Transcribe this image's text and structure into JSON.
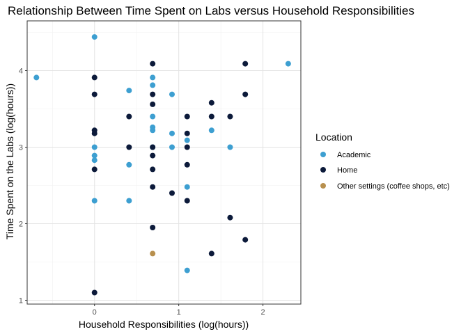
{
  "chart_data": {
    "type": "scatter",
    "title": "Relationship Between Time Spent on Labs versus Household Responsibilities",
    "xlabel": "Household Responsibilities (log(hours))",
    "ylabel": "Time Spent on the Labs (log(hours))",
    "xlim": [
      -0.8,
      2.45
    ],
    "ylim": [
      0.95,
      4.65
    ],
    "x_ticks": [
      0,
      1,
      2
    ],
    "y_ticks": [
      1,
      2,
      3,
      4
    ],
    "x_tick_labels": [
      "0",
      "1",
      "2"
    ],
    "y_tick_labels": [
      "1",
      "2",
      "3",
      "4"
    ],
    "grid": true,
    "legend": {
      "title": "Location",
      "position": "right",
      "entries": [
        {
          "label": "Academic",
          "color": "#3d9fd1"
        },
        {
          "label": "Home",
          "color": "#0c1a3a"
        },
        {
          "label": "Other settings (coffee shops, etc)",
          "color": "#b8904e"
        }
      ]
    },
    "series": [
      {
        "name": "Academic",
        "color": "#3d9fd1",
        "points": [
          [
            -0.69,
            3.91
          ],
          [
            0,
            4.44
          ],
          [
            0,
            3.0
          ],
          [
            0,
            2.89
          ],
          [
            0,
            2.83
          ],
          [
            0,
            2.3
          ],
          [
            0.41,
            3.74
          ],
          [
            0.41,
            2.77
          ],
          [
            0.41,
            2.3
          ],
          [
            0.69,
            3.91
          ],
          [
            0.69,
            3.81
          ],
          [
            0.69,
            3.4
          ],
          [
            0.69,
            3.26
          ],
          [
            0.69,
            3.22
          ],
          [
            0.69,
            3.0
          ],
          [
            0.92,
            3.69
          ],
          [
            0.92,
            3.18
          ],
          [
            0.92,
            3.0
          ],
          [
            1.1,
            3.09
          ],
          [
            1.1,
            2.48
          ],
          [
            1.1,
            1.39
          ],
          [
            1.39,
            3.22
          ],
          [
            1.61,
            3.0
          ],
          [
            2.3,
            4.09
          ]
        ]
      },
      {
        "name": "Home",
        "color": "#0c1a3a",
        "points": [
          [
            0,
            3.91
          ],
          [
            0,
            3.69
          ],
          [
            0,
            3.22
          ],
          [
            0,
            3.18
          ],
          [
            0,
            2.71
          ],
          [
            0,
            1.1
          ],
          [
            0.41,
            3.4
          ],
          [
            0.41,
            3.0
          ],
          [
            0.69,
            4.09
          ],
          [
            0.69,
            3.69
          ],
          [
            0.69,
            3.56
          ],
          [
            0.69,
            3.0
          ],
          [
            0.69,
            2.89
          ],
          [
            0.69,
            2.71
          ],
          [
            0.69,
            2.48
          ],
          [
            0.69,
            1.95
          ],
          [
            0.92,
            2.4
          ],
          [
            1.1,
            3.4
          ],
          [
            1.1,
            3.18
          ],
          [
            1.1,
            3.0
          ],
          [
            1.1,
            2.77
          ],
          [
            1.1,
            2.3
          ],
          [
            1.39,
            3.58
          ],
          [
            1.39,
            3.4
          ],
          [
            1.39,
            1.61
          ],
          [
            1.61,
            3.4
          ],
          [
            1.61,
            2.08
          ],
          [
            1.79,
            4.09
          ],
          [
            1.79,
            3.69
          ],
          [
            1.79,
            1.79
          ]
        ]
      },
      {
        "name": "Other settings (coffee shops, etc)",
        "color": "#b8904e",
        "points": [
          [
            0.69,
            1.61
          ]
        ]
      }
    ]
  }
}
